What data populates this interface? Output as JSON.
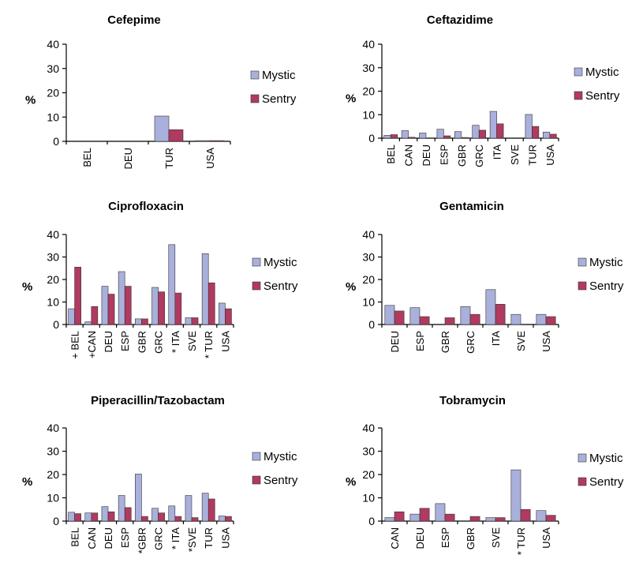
{
  "colors": {
    "mystic": "#aab0dc",
    "sentry": "#b03a60"
  },
  "chart_data": [
    {
      "type": "bar",
      "title": "Cefepime",
      "ylabel": "%",
      "ylim": [
        0,
        40
      ],
      "yticks": [
        "0",
        "10",
        "20",
        "30",
        "40"
      ],
      "categories": [
        "BEL",
        "DEU",
        "TUR",
        "USA"
      ],
      "series": [
        {
          "name": "Mystic",
          "values": [
            0,
            0,
            10.4,
            0.3
          ]
        },
        {
          "name": "Sentry",
          "values": [
            0,
            0,
            4.8,
            0.3
          ]
        }
      ],
      "legend": "right"
    },
    {
      "type": "bar",
      "title": "Ceftazidime",
      "ylabel": "%",
      "ylim": [
        0,
        40
      ],
      "yticks": [
        "0",
        "10",
        "20",
        "30",
        "40"
      ],
      "categories": [
        "BEL",
        "CAN",
        "DEU",
        "ESP",
        "GBR",
        "GRC",
        "ITA",
        "SVE",
        "TUR",
        "USA"
      ],
      "series": [
        {
          "name": "Mystic",
          "values": [
            1.2,
            3.2,
            2.2,
            3.8,
            2.8,
            5.5,
            11.4,
            0,
            10.1,
            2.6
          ]
        },
        {
          "name": "Sentry",
          "values": [
            1.5,
            0.4,
            0,
            1.0,
            0.3,
            3.4,
            6.1,
            0,
            5.0,
            1.7
          ]
        }
      ],
      "legend": "right"
    },
    {
      "type": "bar",
      "title": "Ciprofloxacin",
      "ylabel": "%",
      "ylim": [
        0,
        40
      ],
      "yticks": [
        "0",
        "10",
        "20",
        "30",
        "40"
      ],
      "categories": [
        "+ BEL",
        "+CAN",
        "DEU",
        "ESP",
        "GBR",
        "GRC",
        "* ITA",
        "SVE",
        "* TUR",
        "USA"
      ],
      "series": [
        {
          "name": "Mystic",
          "values": [
            7,
            1.2,
            17,
            23.5,
            2.5,
            16.5,
            35.5,
            3,
            31.5,
            9.5
          ]
        },
        {
          "name": "Sentry",
          "values": [
            25.5,
            8,
            13.5,
            17,
            2.5,
            14.5,
            14,
            3,
            18.5,
            7
          ]
        }
      ],
      "legend": "right"
    },
    {
      "type": "bar",
      "title": "Gentamicin",
      "ylabel": "%",
      "ylim": [
        0,
        40
      ],
      "yticks": [
        "0",
        "10",
        "20",
        "30",
        "40"
      ],
      "categories": [
        "DEU",
        "ESP",
        "GBR",
        "GRC",
        "ITA",
        "SVE",
        "USA"
      ],
      "series": [
        {
          "name": "Mystic",
          "values": [
            8.5,
            7.5,
            0,
            8,
            15.5,
            4.5,
            4.5
          ]
        },
        {
          "name": "Sentry",
          "values": [
            6,
            3.5,
            3,
            4.5,
            9,
            0,
            3.5
          ]
        }
      ],
      "legend": "right"
    },
    {
      "type": "bar",
      "title": "Piperacillin/Tazobactam",
      "ylabel": "%",
      "ylim": [
        0,
        40
      ],
      "yticks": [
        "0",
        "10",
        "20",
        "30",
        "40"
      ],
      "categories": [
        "BEL",
        "CAN",
        "DEU",
        "ESP",
        "*GBR",
        "GRC",
        "* ITA",
        "*SVE",
        "TUR",
        "USA"
      ],
      "series": [
        {
          "name": "Mystic",
          "values": [
            3.8,
            3.5,
            6.2,
            11,
            20.2,
            5.5,
            6.5,
            11,
            12,
            2.2
          ]
        },
        {
          "name": "Sentry",
          "values": [
            3.2,
            3.5,
            4,
            5.8,
            2,
            3.5,
            2,
            1.5,
            9.5,
            2
          ]
        }
      ],
      "legend": "right"
    },
    {
      "type": "bar",
      "title": "Tobramycin",
      "ylabel": "%",
      "ylim": [
        0,
        40
      ],
      "yticks": [
        "0",
        "10",
        "20",
        "30",
        "40"
      ],
      "categories": [
        "CAN",
        "DEU",
        "ESP",
        "GBR",
        "SVE",
        "* TUR",
        "USA"
      ],
      "series": [
        {
          "name": "Mystic",
          "values": [
            1.5,
            3,
            7.5,
            0,
            1.5,
            22,
            4.5
          ]
        },
        {
          "name": "Sentry",
          "values": [
            4,
            5.5,
            3,
            2,
            1.5,
            5,
            2.5
          ]
        }
      ],
      "legend": "right"
    }
  ]
}
